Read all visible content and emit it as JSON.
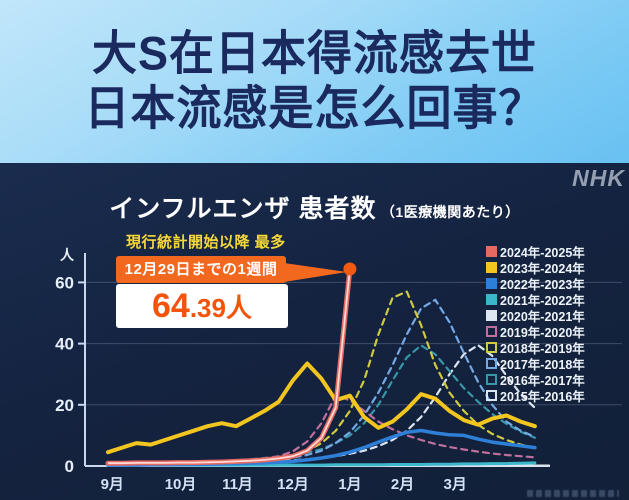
{
  "header": {
    "line1": "大S在日本得流感去世",
    "line2": "日本流感是怎么回事？"
  },
  "chart": {
    "brand": "NHK",
    "title": "インフルエンザ 患者数",
    "title_suffix": "（1医療機関あたり）",
    "annotation": {
      "label": "現行統計開始以降 最多",
      "box_line": "12月29日までの1週間",
      "value_main": "64",
      "value_rest": ".39人"
    }
  },
  "chart_data": {
    "type": "line",
    "title": "インフルエンザ 患者数（1医療機関あたり）",
    "ylabel": "人",
    "ylim": [
      0,
      70
    ],
    "y_ticks": [
      0,
      20,
      40,
      60
    ],
    "grid": true,
    "legend_position": "right",
    "x_months": [
      "9月",
      "10月",
      "11月",
      "12月",
      "1月",
      "2月",
      "3月"
    ],
    "x_month_weeks": [
      0.3,
      5.1,
      9.1,
      13.0,
      17.0,
      20.7,
      24.4
    ],
    "annotation_point": {
      "series": "2024年-2025年",
      "week_label": "12月29日までの1週間",
      "value": 64.39
    },
    "series": [
      {
        "name": "2024年-2025年",
        "color": "#e46a63",
        "core": "#ffd9d4",
        "width": 5,
        "dash": null,
        "filled": true,
        "marker": true,
        "marker_color": "#ee5a11",
        "values": [
          0.9,
          0.9,
          1.0,
          1.0,
          1.0,
          1.1,
          1.1,
          1.2,
          1.3,
          1.5,
          1.7,
          2.0,
          2.5,
          3.2,
          5.0,
          9.2,
          19.1,
          64.39
        ]
      },
      {
        "name": "2023年-2024年",
        "color": "#f3c51f",
        "core": null,
        "width": 4,
        "dash": null,
        "filled": true,
        "marker": false,
        "values": [
          4.5,
          6,
          7.5,
          7,
          8.5,
          10,
          11.5,
          13,
          14,
          13,
          15.5,
          18,
          21,
          28,
          33.5,
          28.5,
          21.5,
          23,
          16,
          12.5,
          14.5,
          18.5,
          23.5,
          22,
          18,
          15,
          13.5,
          15.5,
          16.5,
          14.5,
          13
        ]
      },
      {
        "name": "2022年-2023年",
        "color": "#2e7fd8",
        "core": null,
        "width": 3.5,
        "dash": null,
        "filled": true,
        "marker": false,
        "values": [
          0.3,
          0.3,
          0.3,
          0.4,
          0.4,
          0.5,
          0.5,
          0.6,
          0.7,
          0.8,
          0.9,
          1.0,
          1.2,
          1.5,
          2.0,
          2.6,
          3.4,
          4.5,
          6.0,
          7.8,
          9.5,
          11.0,
          11.6,
          10.8,
          10.2,
          10.0,
          8.8,
          7.8,
          7.2,
          6.6,
          6.0
        ]
      },
      {
        "name": "2021年-2022年",
        "color": "#3cb6c9",
        "core": null,
        "width": 3,
        "dash": null,
        "filled": true,
        "marker": false,
        "values": [
          0.3,
          0.3,
          0.3,
          0.3,
          0.3,
          0.3,
          0.3,
          0.3,
          0.3,
          0.3,
          0.3,
          0.3,
          0.3,
          0.3,
          0.3,
          0.3,
          0.4,
          0.4,
          0.4,
          0.4,
          0.5,
          0.5,
          0.5,
          0.6,
          0.6,
          0.7,
          0.7,
          0.8,
          0.8,
          0.9,
          1.0
        ]
      },
      {
        "name": "2020年-2021年",
        "color": "#dde7f2",
        "core": null,
        "width": 2,
        "dash": null,
        "filled": true,
        "marker": false,
        "values": [
          0.15,
          0.15,
          0.15,
          0.15,
          0.15,
          0.15,
          0.15,
          0.15,
          0.15,
          0.15,
          0.15,
          0.15,
          0.15,
          0.15,
          0.15,
          0.15,
          0.15,
          0.15,
          0.15,
          0.15,
          0.15,
          0.15,
          0.15,
          0.15,
          0.15,
          0.15,
          0.15,
          0.15,
          0.15,
          0.15,
          0.15,
          0.15
        ]
      },
      {
        "name": "2019年-2020年",
        "color": "#c0709f",
        "core": null,
        "width": 2.2,
        "dash": "6 5",
        "filled": false,
        "marker": false,
        "values": [
          0.8,
          0.8,
          0.9,
          0.9,
          1.0,
          1.0,
          1.1,
          1.2,
          1.4,
          1.7,
          2.0,
          2.5,
          3.2,
          4.8,
          8.0,
          14.0,
          23.0,
          21.5,
          18.0,
          14.5,
          12.0,
          10.0,
          8.5,
          7.2,
          6.2,
          5.4,
          4.7,
          4.1,
          3.6,
          3.2,
          2.8
        ]
      },
      {
        "name": "2018年-2019年",
        "color": "#cfca3e",
        "core": null,
        "width": 2.2,
        "dash": "6 5",
        "filled": false,
        "marker": false,
        "values": [
          0.8,
          0.8,
          0.9,
          0.9,
          1.0,
          1.0,
          1.1,
          1.2,
          1.3,
          1.5,
          1.8,
          2.2,
          2.8,
          3.6,
          5.0,
          7.5,
          11.5,
          18.0,
          28.0,
          43.0,
          55.0,
          57.0,
          46.0,
          33.0,
          24.0,
          18.0,
          13.5,
          10.5,
          8.5,
          7.0,
          6.0
        ]
      },
      {
        "name": "2017年-2018年",
        "color": "#74a9e6",
        "core": null,
        "width": 2.2,
        "dash": "6 5",
        "filled": false,
        "marker": false,
        "values": [
          0.4,
          0.4,
          0.5,
          0.5,
          0.6,
          0.7,
          0.8,
          0.9,
          1.0,
          1.2,
          1.5,
          1.8,
          2.2,
          2.8,
          3.6,
          5.0,
          7.5,
          11.0,
          16.5,
          24.0,
          33.0,
          43.0,
          51.5,
          54.3,
          47.0,
          37.0,
          27.5,
          20.0,
          14.5,
          11.5,
          9.5
        ]
      },
      {
        "name": "2016年-2017年",
        "color": "#3796a8",
        "core": null,
        "width": 2.2,
        "dash": "6 5",
        "filled": false,
        "marker": false,
        "values": [
          0.6,
          0.7,
          0.8,
          0.9,
          1.0,
          1.1,
          1.2,
          1.4,
          1.6,
          1.9,
          2.2,
          2.6,
          3.0,
          3.6,
          4.4,
          5.5,
          7.5,
          10.0,
          14.0,
          20.0,
          28.0,
          35.5,
          39.4,
          36.5,
          31.0,
          25.5,
          21.0,
          17.0,
          13.8,
          11.2,
          9.2
        ]
      },
      {
        "name": "2015年-2016年",
        "color": "#dce6f2",
        "core": null,
        "width": 2.2,
        "dash": "6 5",
        "filled": false,
        "marker": false,
        "values": [
          0.5,
          0.5,
          0.6,
          0.6,
          0.7,
          0.7,
          0.8,
          0.9,
          1.0,
          1.1,
          1.2,
          1.4,
          1.6,
          1.9,
          2.2,
          2.6,
          3.2,
          4.0,
          5.0,
          6.5,
          8.5,
          11.5,
          16.0,
          22.5,
          30.0,
          36.5,
          39.5,
          36.0,
          29.5,
          23.5,
          19.0
        ]
      }
    ]
  }
}
